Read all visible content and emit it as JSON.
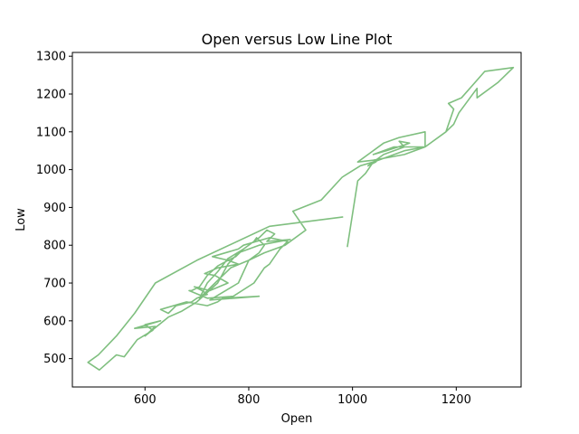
{
  "chart_data": {
    "type": "line",
    "title": "Open versus Low Line Plot",
    "xlabel": "Open",
    "ylabel": "Low",
    "xlim": [
      460,
      1325
    ],
    "ylim": [
      425,
      1310
    ],
    "xticks": [
      600,
      800,
      1000,
      1200
    ],
    "yticks": [
      500,
      600,
      700,
      800,
      900,
      1000,
      1100,
      1200,
      1300
    ],
    "grid": false,
    "line_color": "#7fbf7f",
    "series": [
      {
        "x": [
          982,
          840,
          700,
          620,
          580,
          545,
          510,
          490,
          512,
          545,
          560,
          585,
          615,
          600,
          630,
          580,
          620,
          600,
          645,
          670,
          700,
          740,
          760,
          780,
          820,
          880,
          835,
          850,
          835,
          820,
          790,
          760,
          740,
          720,
          705,
          735,
          750,
          765,
          800,
          820,
          830,
          815,
          810,
          790,
          775,
          760,
          740,
          720,
          705,
          690,
          685,
          720,
          770,
          810,
          830,
          840,
          850,
          860,
          875,
          840,
          815,
          790,
          780,
          730,
          760,
          780,
          740,
          715,
          735,
          760,
          725,
          695,
          710,
          720,
          700,
          690,
          660,
          645,
          630,
          680,
          720,
          740,
          750,
          820,
          725,
          780,
          800,
          830,
          870,
          910,
          885,
          940,
          980,
          1015,
          1040,
          1050,
          1045,
          1030,
          1060,
          1100,
          1090,
          1110,
          1100,
          1065,
          1040,
          1080,
          1140,
          1140,
          1090,
          1060,
          1030,
          1010,
          1040,
          1100,
          1140,
          1180,
          1195,
          1185,
          1210,
          1255,
          1310,
          1280,
          1240,
          1240,
          1205,
          1195,
          1180,
          1140,
          1100,
          1060,
          1040,
          1025,
          1010,
          990
        ],
        "y": [
          875,
          850,
          760,
          700,
          620,
          560,
          510,
          490,
          470,
          510,
          505,
          550,
          575,
          590,
          600,
          580,
          585,
          560,
          610,
          625,
          650,
          700,
          750,
          780,
          800,
          815,
          810,
          830,
          840,
          820,
          790,
          765,
          730,
          700,
          660,
          700,
          720,
          740,
          760,
          780,
          800,
          820,
          810,
          790,
          770,
          760,
          745,
          720,
          690,
          680,
          680,
          660,
          665,
          700,
          740,
          750,
          770,
          790,
          810,
          820,
          810,
          800,
          790,
          770,
          760,
          750,
          740,
          725,
          720,
          700,
          680,
          690,
          680,
          670,
          660,
          650,
          640,
          620,
          630,
          650,
          640,
          650,
          660,
          665,
          655,
          700,
          760,
          780,
          800,
          840,
          890,
          920,
          980,
          1010,
          1020,
          1030,
          1020,
          1010,
          1040,
          1060,
          1075,
          1070,
          1065,
          1050,
          1040,
          1060,
          1060,
          1100,
          1085,
          1070,
          1040,
          1020,
          1025,
          1040,
          1060,
          1100,
          1160,
          1175,
          1190,
          1260,
          1270,
          1230,
          1190,
          1215,
          1150,
          1120,
          1100,
          1060,
          1050,
          1030,
          1020,
          990,
          970,
          795
        ]
      }
    ]
  }
}
